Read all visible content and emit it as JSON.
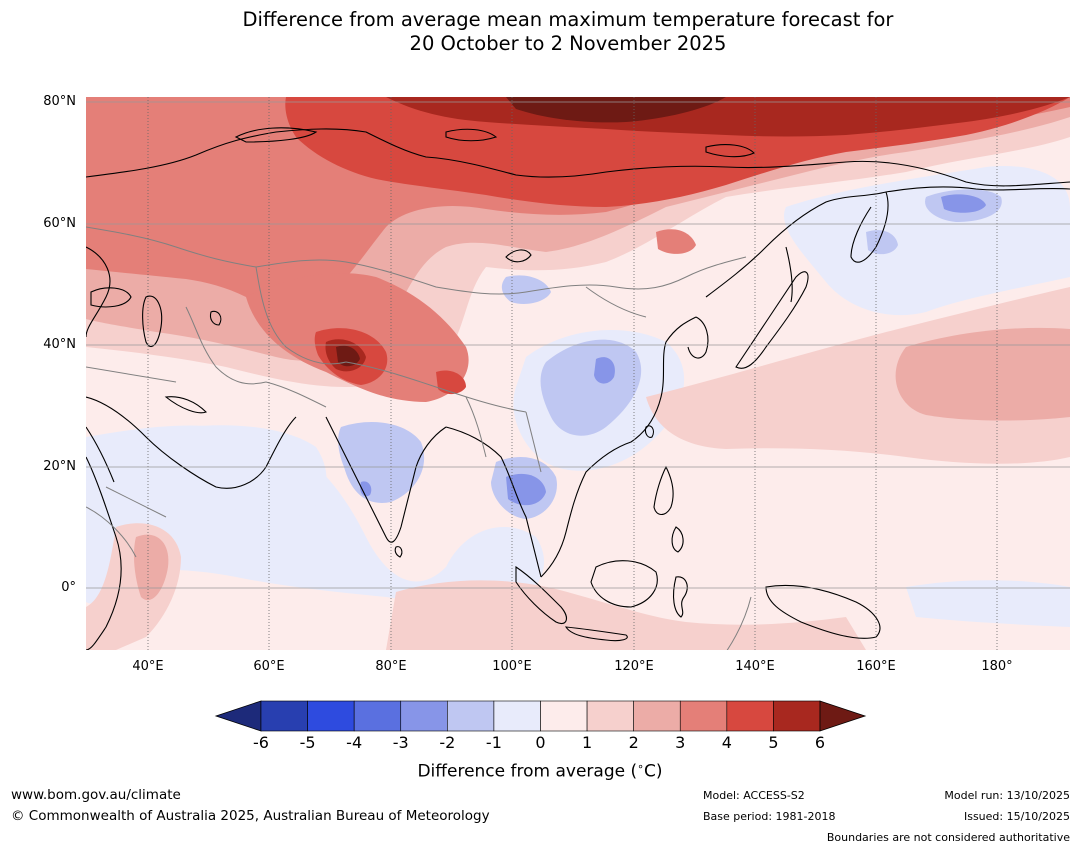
{
  "title": {
    "line1": "Difference from average mean maximum temperature forecast for",
    "line2": "20 October to 2 November 2025"
  },
  "map": {
    "lat_labels": [
      "80°N",
      "60°N",
      "40°N",
      "20°N",
      "0°"
    ],
    "lon_labels": [
      "40°E",
      "60°E",
      "80°E",
      "100°E",
      "120°E",
      "140°E",
      "160°E",
      "180°"
    ],
    "colors": {
      "land_outline": "#000000",
      "boundaries": "#808080",
      "grid": "#555555"
    }
  },
  "colorbar": {
    "label": "Difference from average ($^\\circ$C)",
    "label_text": "Difference from average (",
    "label_unit": "C)",
    "label_degree": "∘",
    "ticks": [
      "-6",
      "-5",
      "-4",
      "-3",
      "-2",
      "-1",
      "0",
      "1",
      "2",
      "3",
      "4",
      "5",
      "6"
    ],
    "colors": [
      "#1d2a7a",
      "#283fb0",
      "#2e4bdf",
      "#5a70e0",
      "#8795e8",
      "#bfc7f2",
      "#e8ebfb",
      "#fdeceb",
      "#f6d0cd",
      "#ecaca7",
      "#e47f78",
      "#d7483f",
      "#a8281f",
      "#6e1a14"
    ]
  },
  "footer": {
    "website": "www.bom.gov.au/climate",
    "copyright": "© Commonwealth of Australia 2025, Australian Bureau of Meteorology",
    "model": "Model: ACCESS-S2",
    "base_period": "Base period: 1981-2018",
    "model_run": "Model run: 13/10/2025",
    "issued": "Issued: 15/10/2025",
    "boundaries_note": "Boundaries are not considered authoritative"
  }
}
